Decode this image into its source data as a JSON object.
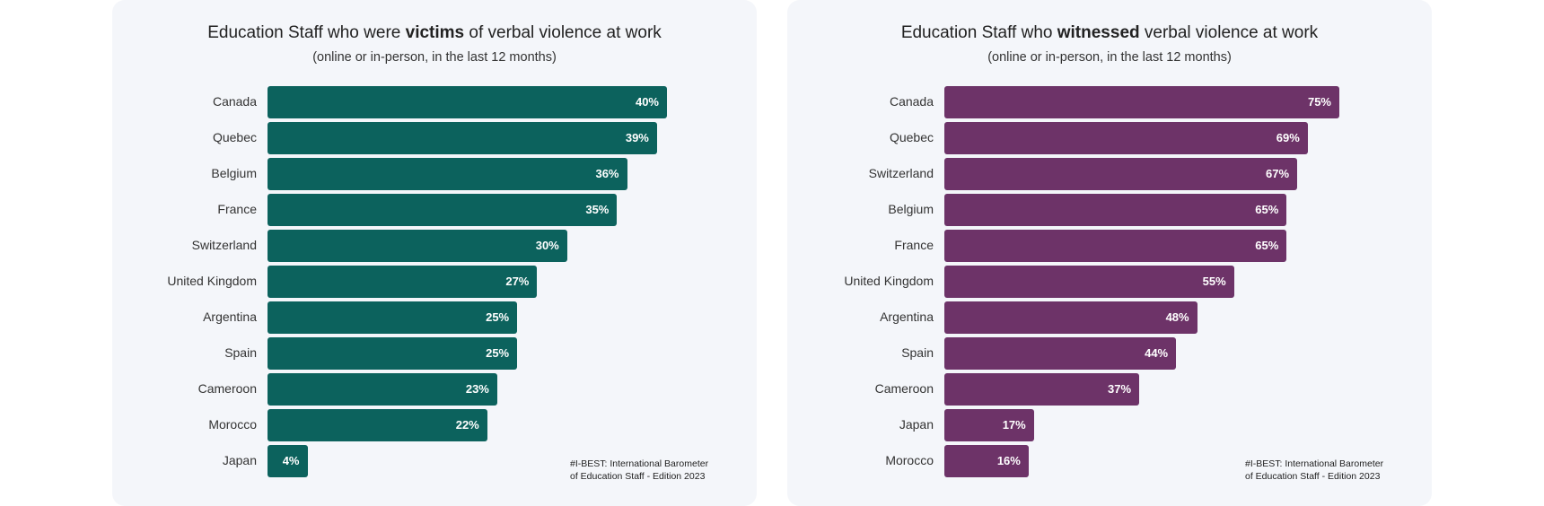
{
  "chart_data": [
    {
      "type": "bar",
      "orientation": "horizontal",
      "title_pre": "Education Staff who were ",
      "title_bold": "victims",
      "title_post": " of verbal violence at work",
      "subtitle": "(online or in-person, in the last 12 months)",
      "color": "#0c625d",
      "categories": [
        "Canada",
        "Quebec",
        "Belgium",
        "France",
        "Switzerland",
        "United Kingdom",
        "Argentina",
        "Spain",
        "Cameroon",
        "Morocco",
        "Japan"
      ],
      "values": [
        40,
        39,
        36,
        35,
        30,
        27,
        25,
        25,
        23,
        22,
        4
      ],
      "labels": [
        "40%",
        "39%",
        "36%",
        "35%",
        "30%",
        "27%",
        "25%",
        "25%",
        "23%",
        "22%",
        "4%"
      ],
      "source_line1": "#I-BEST: International Barometer",
      "source_line2": "of Education Staff - Edition 2023"
    },
    {
      "type": "bar",
      "orientation": "horizontal",
      "title_pre": "Education Staff who ",
      "title_bold": "witnessed",
      "title_post": " verbal violence at work",
      "subtitle": "(online or in-person, in the last 12 months)",
      "color": "#6d3368",
      "categories": [
        "Canada",
        "Quebec",
        "Switzerland",
        "Belgium",
        "France",
        "United Kingdom",
        "Argentina",
        "Spain",
        "Cameroon",
        "Japan",
        "Morocco"
      ],
      "values": [
        75,
        69,
        67,
        65,
        65,
        55,
        48,
        44,
        37,
        17,
        16
      ],
      "labels": [
        "75%",
        "69%",
        "67%",
        "65%",
        "65%",
        "55%",
        "48%",
        "44%",
        "37%",
        "17%",
        "16%"
      ],
      "source_line1": "#I-BEST: International Barometer",
      "source_line2": "of Education Staff - Edition 2023"
    }
  ]
}
